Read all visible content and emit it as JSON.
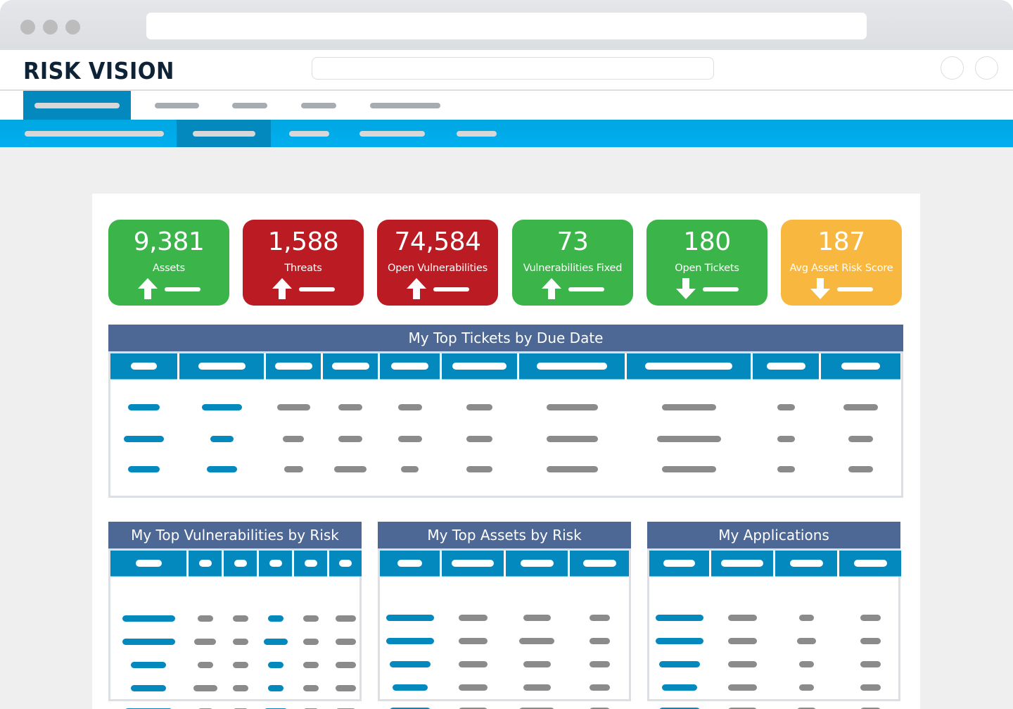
{
  "app": {
    "title": "RISK VISION"
  },
  "colors": {
    "chrome": "#e0e2e6",
    "accent_dark": "#0389be",
    "accent_bright": "#00aeef",
    "panel_header": "#4d6895",
    "placeholder_grey": "#8b8b8b",
    "green": "#3bb54a",
    "red": "#bb1b22",
    "amber": "#f8b73e"
  },
  "browser": {
    "window_controls": [
      "close-dot",
      "minimize-dot",
      "maximize-dot"
    ]
  },
  "header": {
    "icons": [
      "user-circle-icon",
      "settings-circle-icon"
    ]
  },
  "primary_nav": {
    "active_index": 0,
    "item_count": 5
  },
  "secondary_nav": {
    "active_index": 1,
    "item_count": 5
  },
  "kpis": [
    {
      "value": "9,381",
      "label": "Assets",
      "trend": "up",
      "color": "#3bb54a"
    },
    {
      "value": "1,588",
      "label": "Threats",
      "trend": "up",
      "color": "#bb1b22"
    },
    {
      "value": "74,584",
      "label": "Open Vulnerabilities",
      "trend": "up",
      "color": "#bb1b22"
    },
    {
      "value": "73",
      "label": "Vulnerabilities Fixed",
      "trend": "up",
      "color": "#3bb54a"
    },
    {
      "value": "180",
      "label": "Open Tickets",
      "trend": "down",
      "color": "#3bb54a"
    },
    {
      "value": "187",
      "label": "Avg Asset Risk Score",
      "trend": "down",
      "color": "#f8b73e"
    }
  ],
  "panels": {
    "tickets": {
      "title": "My Top Tickets by Due Date",
      "columns": 10,
      "rows": 3
    },
    "vulnerabilities": {
      "title": "My Top Vulnerabilities by Risk",
      "columns": 6,
      "rows": 5
    },
    "assets": {
      "title": "My Top Assets by Risk",
      "columns": 4,
      "rows": 5
    },
    "applications": {
      "title": "My Applications",
      "columns": 4,
      "rows": 5
    }
  }
}
